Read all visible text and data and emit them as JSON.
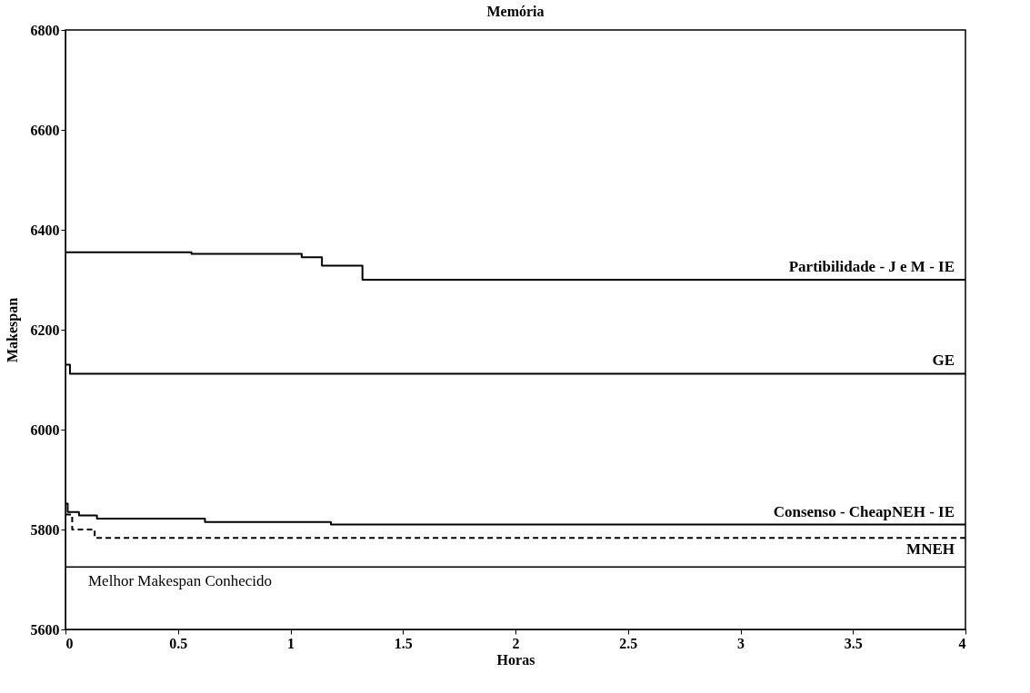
{
  "chart_data": {
    "type": "step",
    "title": "Memória",
    "xlabel": "Horas",
    "ylabel": "Makespan",
    "xlim": [
      0,
      4
    ],
    "xticks": [
      0,
      0.5,
      1,
      1.5,
      2,
      2.5,
      3,
      3.5,
      4
    ],
    "ylim": [
      5600,
      6800
    ],
    "yticks": [
      5600,
      5800,
      6000,
      6200,
      6400,
      6600,
      6800
    ],
    "grid": false,
    "legend": false,
    "series": [
      {
        "name": "Partibilidade - J e M - IE",
        "color": "#000000",
        "line_style": "solid",
        "x": [
          0,
          0.56,
          1.05,
          1.14,
          1.32,
          4
        ],
        "values": [
          6355,
          6352,
          6345,
          6328,
          6300,
          6300
        ]
      },
      {
        "name": "GE",
        "color": "#000000",
        "line_style": "solid",
        "x": [
          0,
          0.02,
          2,
          4
        ],
        "values": [
          6130,
          6112,
          6112,
          6112
        ]
      },
      {
        "name": "Consenso - CheapNEH - IE",
        "color": "#000000",
        "line_style": "solid",
        "x": [
          0,
          0.01,
          0.06,
          0.14,
          0.62,
          1.18,
          4
        ],
        "values": [
          5852,
          5835,
          5828,
          5822,
          5815,
          5810,
          5810
        ]
      },
      {
        "name": "MNEH",
        "color": "#000000",
        "line_style": "dashed",
        "x": [
          0,
          0.03,
          0.13,
          4
        ],
        "values": [
          5830,
          5800,
          5783,
          5783
        ]
      }
    ],
    "ref_lines": [
      {
        "axis": "y",
        "value": 5725,
        "label": "Melhor Makespan Conhecido",
        "color": "#000000"
      }
    ]
  }
}
